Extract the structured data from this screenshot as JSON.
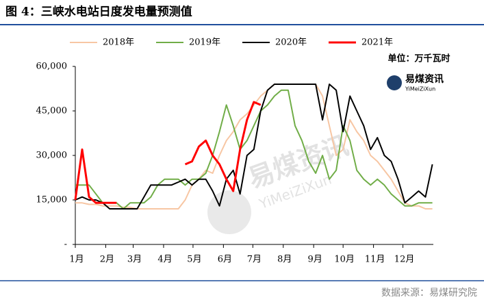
{
  "chart_data": {
    "type": "line",
    "title": "图 4：三峡水电站日度发电量预测值",
    "unit": "单位：万千瓦时",
    "logo": {
      "name": "易煤资讯",
      "sub": "YiMeiZiXun"
    },
    "source": "数据来源：易煤研究院",
    "x": [
      0,
      7,
      14,
      21,
      28,
      35,
      42,
      49,
      56,
      63,
      70,
      77,
      84,
      91,
      98,
      105,
      112,
      119,
      126,
      133,
      140,
      147,
      154,
      161,
      168,
      175,
      182,
      189,
      196,
      203,
      210,
      217,
      224,
      231,
      238,
      245,
      252,
      259,
      266,
      273,
      280,
      287,
      294,
      301,
      308,
      315,
      322,
      329,
      336,
      343,
      350,
      357,
      364
    ],
    "xlim": [
      0,
      365
    ],
    "xticks": [
      {
        "value": 0,
        "label": "1月"
      },
      {
        "value": 31,
        "label": "2月"
      },
      {
        "value": 59,
        "label": "3月"
      },
      {
        "value": 90,
        "label": "4月"
      },
      {
        "value": 120,
        "label": "5月"
      },
      {
        "value": 151,
        "label": "6月"
      },
      {
        "value": 181,
        "label": "7月"
      },
      {
        "value": 212,
        "label": "8月"
      },
      {
        "value": 243,
        "label": "9月"
      },
      {
        "value": 273,
        "label": "10月"
      },
      {
        "value": 304,
        "label": "11月"
      },
      {
        "value": 334,
        "label": "12月"
      }
    ],
    "ylim": [
      0,
      60000
    ],
    "yticks": [
      {
        "value": 0,
        "label": "-"
      },
      {
        "value": 15000,
        "label": "15,000"
      },
      {
        "value": 30000,
        "label": "30,000"
      },
      {
        "value": 45000,
        "label": "45,000"
      },
      {
        "value": 60000,
        "label": "60,000"
      }
    ],
    "series": [
      {
        "name": "2018年",
        "color": "#f7c6a3",
        "values": [
          14000,
          14000,
          13500,
          13500,
          13000,
          13000,
          13000,
          12500,
          12500,
          12000,
          12000,
          12000,
          12000,
          12000,
          12000,
          12000,
          15000,
          20000,
          22000,
          25000,
          24000,
          30000,
          35000,
          38000,
          42000,
          44000,
          47000,
          50000,
          52000,
          54000,
          54000,
          54000,
          54000,
          54000,
          54000,
          54000,
          50000,
          40000,
          30000,
          32000,
          42000,
          38000,
          35000,
          30000,
          28000,
          25000,
          22000,
          18000,
          14000,
          13000,
          13000,
          12000,
          12000
        ]
      },
      {
        "name": "2019年",
        "color": "#70ad47",
        "values": [
          20000,
          20000,
          20000,
          17000,
          14000,
          14000,
          14000,
          12000,
          14000,
          14000,
          14000,
          16000,
          20000,
          22000,
          22000,
          22000,
          20000,
          22000,
          22000,
          24000,
          30000,
          38000,
          47000,
          40000,
          32000,
          35000,
          40000,
          45000,
          47000,
          50000,
          52000,
          52000,
          40000,
          35000,
          28000,
          24000,
          30000,
          22000,
          25000,
          40000,
          35000,
          25000,
          22000,
          20000,
          22000,
          20000,
          17000,
          15000,
          13000,
          13000,
          14000,
          14000,
          14000
        ]
      },
      {
        "name": "2020年",
        "color": "#000000",
        "values": [
          15000,
          16000,
          15000,
          15000,
          14000,
          12000,
          12000,
          12000,
          12000,
          12000,
          16000,
          20000,
          20000,
          20000,
          20000,
          21000,
          22000,
          20000,
          22000,
          22000,
          18000,
          13000,
          22000,
          25000,
          17000,
          30000,
          32000,
          45000,
          52000,
          54000,
          54000,
          54000,
          54000,
          54000,
          54000,
          54000,
          42000,
          54000,
          52000,
          38000,
          50000,
          45000,
          40000,
          32000,
          36000,
          30000,
          28000,
          22000,
          14000,
          16000,
          18000,
          16000,
          27000
        ]
      },
      {
        "name": "2021年",
        "color": "#ff0000",
        "values": [
          15000,
          32000,
          16000,
          14000,
          14000,
          14000,
          14000,
          null,
          null,
          null,
          null,
          null,
          null,
          null,
          null,
          null,
          27000,
          28000,
          33000,
          35000,
          30000,
          27000,
          22000,
          18000,
          32000,
          42000,
          48000,
          47000,
          null,
          null,
          null,
          null,
          null,
          null,
          null,
          null,
          null,
          null,
          null,
          null,
          null,
          null,
          null,
          null,
          null,
          null,
          null,
          null,
          null,
          null,
          null,
          null,
          null
        ]
      }
    ]
  }
}
